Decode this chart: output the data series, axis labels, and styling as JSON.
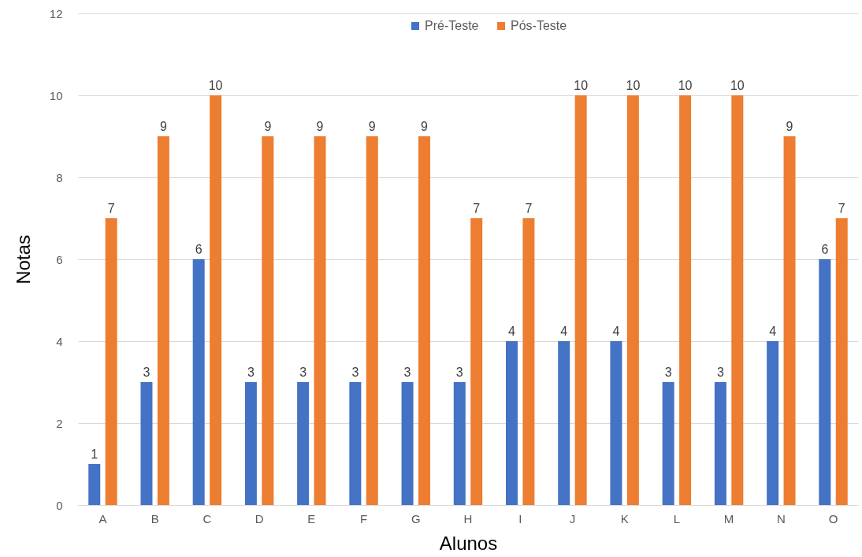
{
  "chart_data": {
    "type": "bar",
    "xlabel": "Alunos",
    "ylabel": "Notas",
    "categories": [
      "A",
      "B",
      "C",
      "D",
      "E",
      "F",
      "G",
      "H",
      "I",
      "J",
      "K",
      "L",
      "M",
      "N",
      "O"
    ],
    "series": [
      {
        "name": "Pré-Teste",
        "color": "#4472c4",
        "values": [
          1,
          3,
          6,
          3,
          3,
          3,
          3,
          3,
          4,
          4,
          4,
          3,
          3,
          4,
          6
        ]
      },
      {
        "name": "Pós-Teste",
        "color": "#ed7d31",
        "values": [
          7,
          9,
          10,
          9,
          9,
          9,
          9,
          7,
          7,
          10,
          10,
          10,
          10,
          9,
          7
        ]
      }
    ],
    "ylim": [
      0,
      12
    ],
    "yticks": [
      0,
      2,
      4,
      6,
      8,
      10,
      12
    ],
    "grid": "y",
    "legend": "top",
    "data_labels": true
  }
}
